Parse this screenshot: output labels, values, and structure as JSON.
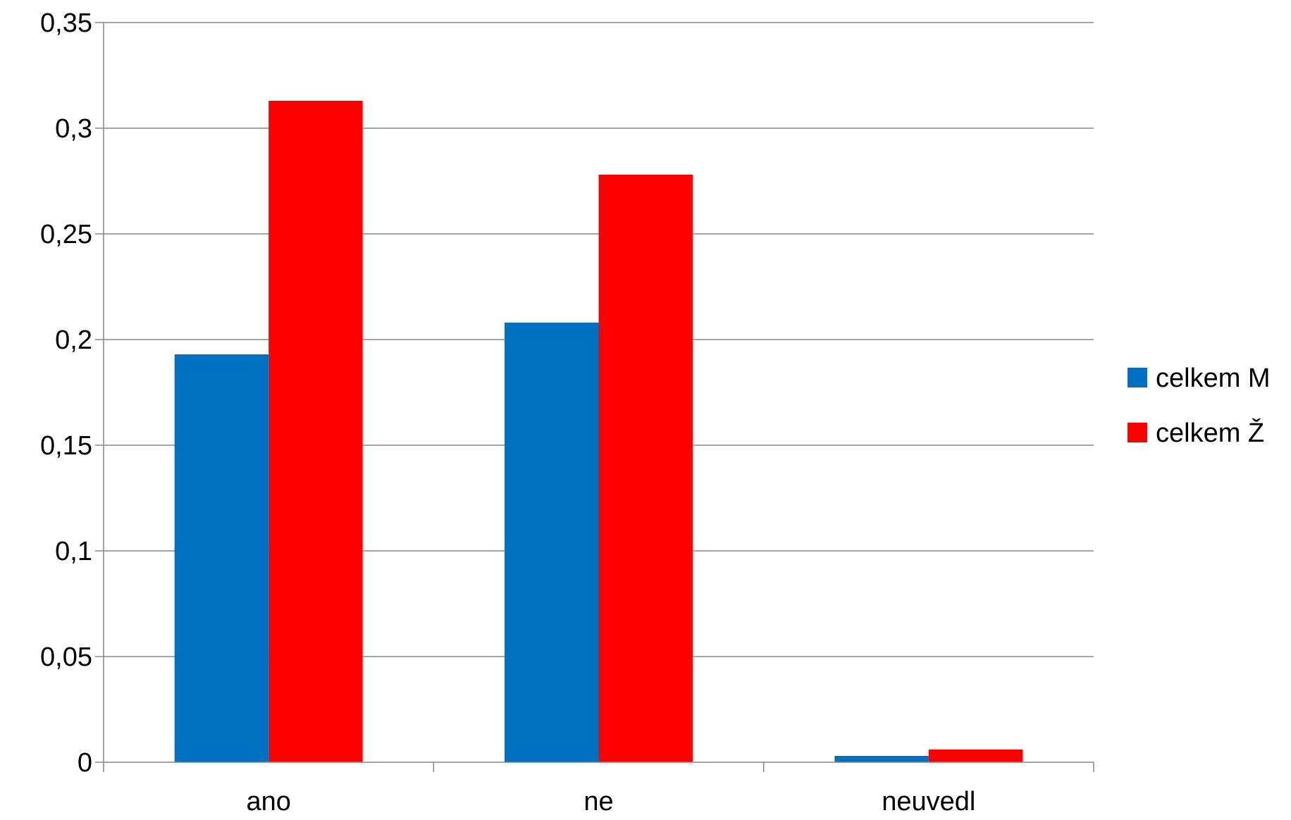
{
  "chart_data": {
    "type": "bar",
    "title": "",
    "xlabel": "",
    "ylabel": "",
    "categories": [
      "ano",
      "ne",
      "neuvedl"
    ],
    "series": [
      {
        "name": "celkem M",
        "values": [
          0.193,
          0.208,
          0.003
        ],
        "color": "#0070C0"
      },
      {
        "name": "celkem Ž",
        "values": [
          0.313,
          0.278,
          0.006
        ],
        "color": "#FF0000"
      }
    ],
    "ylim": [
      0,
      0.35
    ],
    "yticks": [
      0,
      0.05,
      0.1,
      0.15,
      0.2,
      0.25,
      0.3,
      0.35
    ],
    "ytick_labels": [
      "0",
      "0,05",
      "0,1",
      "0,15",
      "0,2",
      "0,25",
      "0,3",
      "0,35"
    ],
    "grid": true,
    "legend_position": "right",
    "gridline_color": "#868686",
    "axis_color": "#868686"
  }
}
